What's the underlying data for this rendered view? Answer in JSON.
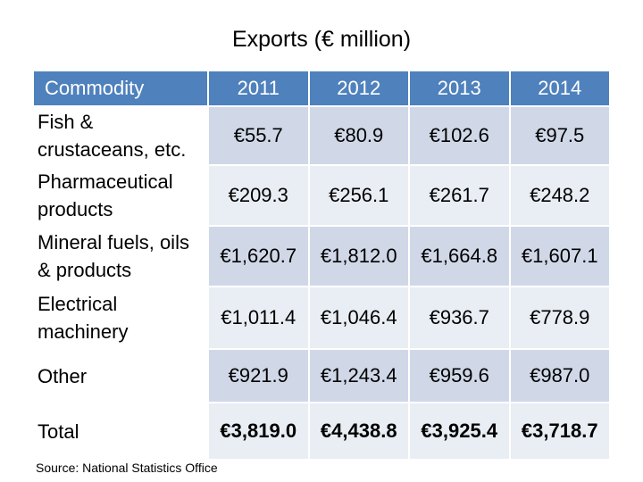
{
  "title": "Exports (€ million)",
  "table": {
    "headers": [
      "Commodity",
      "2011",
      "2012",
      "2013",
      "2014"
    ],
    "rows": [
      {
        "label": "Fish & crustaceans, etc.",
        "values": [
          "€55.7",
          "€80.9",
          "€102.6",
          "€97.5"
        ]
      },
      {
        "label": "Pharmaceutical products",
        "values": [
          "€209.3",
          "€256.1",
          "€261.7",
          "€248.2"
        ]
      },
      {
        "label": "Mineral fuels, oils & products",
        "values": [
          "€1,620.7",
          "€1,812.0",
          "€1,664.8",
          "€1,607.1"
        ]
      },
      {
        "label": "Electrical machinery",
        "values": [
          "€1,011.4",
          "€1,046.4",
          "€936.7",
          "€778.9"
        ]
      },
      {
        "label": "Other",
        "values": [
          "€921.9",
          "€1,243.4",
          "€959.6",
          "€987.0"
        ]
      },
      {
        "label": "Total",
        "values": [
          "€3,819.0",
          "€4,438.8",
          "€3,925.4",
          "€3,718.7"
        ]
      }
    ]
  },
  "source": "Source: National Statistics Office",
  "colors": {
    "header_bg": "#4f81bd",
    "row_odd": "#d0d8e8",
    "row_even": "#e9edf4"
  }
}
